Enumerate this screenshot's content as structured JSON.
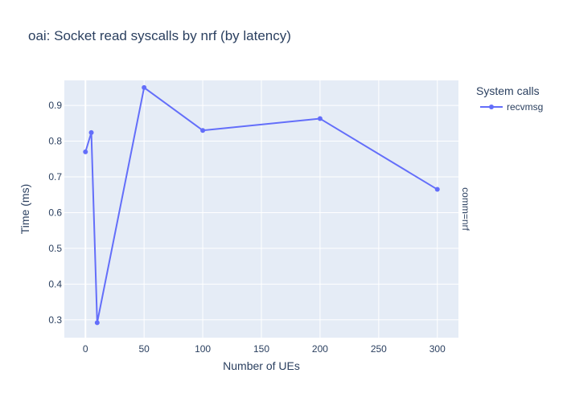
{
  "chart_data": {
    "type": "line",
    "title": "oai: Socket read syscalls by nrf (by latency)",
    "xlabel": "Number of UEs",
    "ylabel": "Time (ms)",
    "xlim": [
      -18,
      318
    ],
    "ylim": [
      0.25,
      0.97
    ],
    "x_ticks": [
      0,
      50,
      100,
      150,
      200,
      250,
      300
    ],
    "y_ticks": [
      0.3,
      0.4,
      0.5,
      0.6,
      0.7,
      0.8,
      0.9
    ],
    "grid": true,
    "legend": {
      "title": "System calls",
      "placement": "top-right"
    },
    "facet_label": "comm=nrf",
    "series": [
      {
        "name": "recvmsg",
        "color": "#636efa",
        "x": [
          0,
          5,
          10,
          50,
          100,
          200,
          300
        ],
        "y": [
          0.77,
          0.824,
          0.292,
          0.95,
          0.83,
          0.863,
          0.665
        ]
      }
    ]
  }
}
